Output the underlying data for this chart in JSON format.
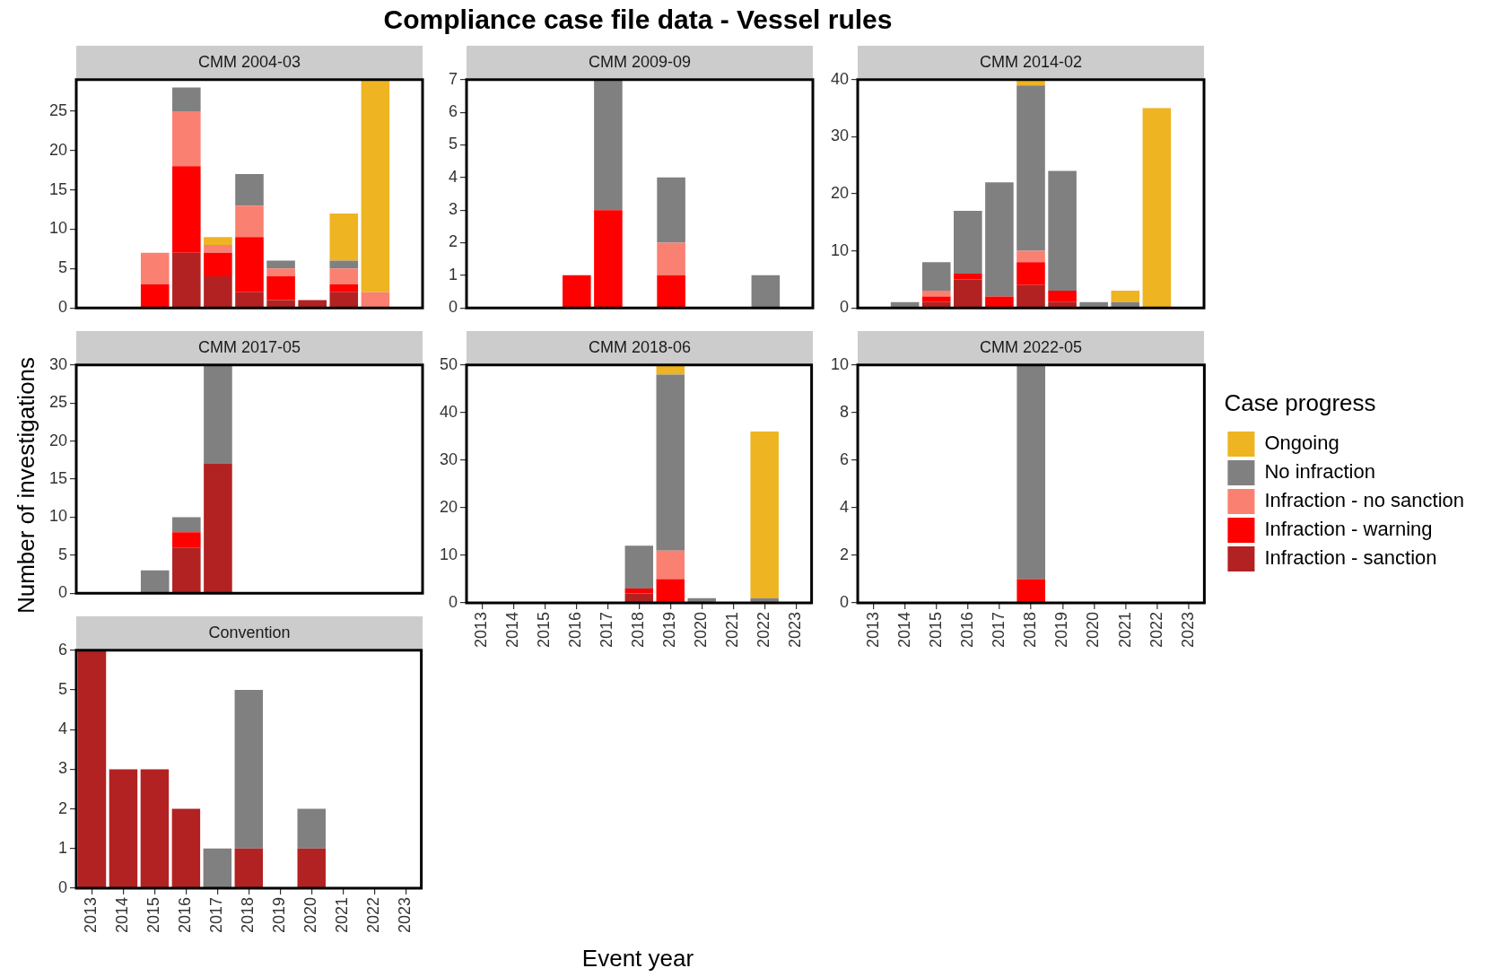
{
  "chart_data": [
    {
      "type": "other",
      "title": "Compliance case file data - Vessel rules",
      "xlabel": "Event year",
      "ylabel": "Number of investigations"
    },
    {
      "type": "bar",
      "title": "CMM 2004-03",
      "stacked": true,
      "categories": [
        "2013",
        "2014",
        "2015",
        "2016",
        "2017",
        "2018",
        "2019",
        "2020",
        "2021",
        "2022",
        "2023"
      ],
      "series": [
        {
          "color": "#b22222",
          "values": [
            0,
            0,
            0,
            7,
            4,
            2,
            1,
            1,
            2,
            0,
            0
          ]
        },
        {
          "color": "#ff0000",
          "values": [
            0,
            0,
            3,
            11,
            3,
            7,
            3,
            0,
            1,
            0,
            0
          ]
        },
        {
          "color": "#fa8072",
          "values": [
            0,
            0,
            4,
            7,
            1,
            4,
            1,
            0,
            2,
            2,
            0
          ]
        },
        {
          "color": "#808080",
          "values": [
            0,
            0,
            0,
            3,
            0,
            4,
            1,
            0,
            1,
            0,
            0
          ]
        },
        {
          "color": "#eeb422",
          "values": [
            0,
            0,
            0,
            0,
            1,
            0,
            0,
            0,
            6,
            27,
            0
          ]
        }
      ],
      "ylim": [
        0,
        29
      ],
      "yticks": [
        0,
        5,
        10,
        15,
        20,
        25
      ],
      "tick_labels": "y"
    },
    {
      "type": "bar",
      "title": "CMM 2009-09",
      "stacked": true,
      "categories": [
        "2013",
        "2014",
        "2015",
        "2016",
        "2017",
        "2018",
        "2019",
        "2020",
        "2021",
        "2022",
        "2023"
      ],
      "series": [
        {
          "color": "#b22222",
          "values": [
            0,
            0,
            0,
            0,
            0,
            0,
            0,
            0,
            0,
            0,
            0
          ]
        },
        {
          "color": "#ff0000",
          "values": [
            0,
            0,
            0,
            1,
            3,
            0,
            1,
            0,
            0,
            0,
            0
          ]
        },
        {
          "color": "#fa8072",
          "values": [
            0,
            0,
            0,
            0,
            0,
            0,
            1,
            0,
            0,
            0,
            0
          ]
        },
        {
          "color": "#808080",
          "values": [
            0,
            0,
            0,
            0,
            4,
            0,
            2,
            0,
            0,
            1,
            0
          ]
        },
        {
          "color": "#eeb422",
          "values": [
            0,
            0,
            0,
            0,
            0,
            0,
            0,
            0,
            0,
            0,
            0
          ]
        }
      ],
      "ylim": [
        0,
        7
      ],
      "yticks": [
        0,
        1,
        2,
        3,
        4,
        5,
        6,
        7
      ],
      "tick_labels": "y"
    },
    {
      "type": "bar",
      "title": "CMM 2014-02",
      "stacked": true,
      "categories": [
        "2013",
        "2014",
        "2015",
        "2016",
        "2017",
        "2018",
        "2019",
        "2020",
        "2021",
        "2022",
        "2023"
      ],
      "series": [
        {
          "color": "#b22222",
          "values": [
            0,
            0,
            1,
            5,
            0,
            4,
            1,
            0,
            0,
            0,
            0
          ]
        },
        {
          "color": "#ff0000",
          "values": [
            0,
            0,
            1,
            1,
            2,
            4,
            2,
            0,
            0,
            0,
            0
          ]
        },
        {
          "color": "#fa8072",
          "values": [
            0,
            0,
            1,
            0,
            0,
            2,
            0,
            0,
            0,
            0,
            0
          ]
        },
        {
          "color": "#808080",
          "values": [
            0,
            1,
            5,
            11,
            20,
            29,
            21,
            1,
            1,
            0,
            0
          ]
        },
        {
          "color": "#eeb422",
          "values": [
            0,
            0,
            0,
            0,
            0,
            1,
            0,
            0,
            2,
            35,
            0
          ]
        }
      ],
      "ylim": [
        0,
        40
      ],
      "yticks": [
        0,
        10,
        20,
        30,
        40
      ],
      "tick_labels": "y"
    },
    {
      "type": "bar",
      "title": "CMM 2017-05",
      "stacked": true,
      "categories": [
        "2013",
        "2014",
        "2015",
        "2016",
        "2017",
        "2018",
        "2019",
        "2020",
        "2021",
        "2022",
        "2023"
      ],
      "series": [
        {
          "color": "#b22222",
          "values": [
            0,
            0,
            0,
            6,
            17,
            0,
            0,
            0,
            0,
            0,
            0
          ]
        },
        {
          "color": "#ff0000",
          "values": [
            0,
            0,
            0,
            2,
            0,
            0,
            0,
            0,
            0,
            0,
            0
          ]
        },
        {
          "color": "#fa8072",
          "values": [
            0,
            0,
            0,
            0,
            0,
            0,
            0,
            0,
            0,
            0,
            0
          ]
        },
        {
          "color": "#808080",
          "values": [
            0,
            0,
            3,
            2,
            13,
            0,
            0,
            0,
            0,
            0,
            0
          ]
        },
        {
          "color": "#eeb422",
          "values": [
            0,
            0,
            0,
            0,
            0,
            0,
            0,
            0,
            0,
            0,
            0
          ]
        }
      ],
      "ylim": [
        0,
        30
      ],
      "yticks": [
        0,
        5,
        10,
        15,
        20,
        25,
        30
      ],
      "tick_labels": "y"
    },
    {
      "type": "bar",
      "title": "CMM 2018-06",
      "stacked": true,
      "categories": [
        "2013",
        "2014",
        "2015",
        "2016",
        "2017",
        "2018",
        "2019",
        "2020",
        "2021",
        "2022",
        "2023"
      ],
      "series": [
        {
          "color": "#b22222",
          "values": [
            0,
            0,
            0,
            0,
            0,
            2,
            0,
            0,
            0,
            0,
            0
          ]
        },
        {
          "color": "#ff0000",
          "values": [
            0,
            0,
            0,
            0,
            0,
            1,
            5,
            0,
            0,
            0,
            0
          ]
        },
        {
          "color": "#fa8072",
          "values": [
            0,
            0,
            0,
            0,
            0,
            0,
            6,
            0,
            0,
            0,
            0
          ]
        },
        {
          "color": "#808080",
          "values": [
            0,
            0,
            0,
            0,
            0,
            9,
            37,
            1,
            0,
            1,
            0
          ]
        },
        {
          "color": "#eeb422",
          "values": [
            0,
            0,
            0,
            0,
            0,
            0,
            2,
            0,
            0,
            35,
            0
          ]
        }
      ],
      "ylim": [
        0,
        50
      ],
      "yticks": [
        0,
        10,
        20,
        30,
        40,
        50
      ]
    },
    {
      "type": "bar",
      "title": "CMM 2022-05",
      "stacked": true,
      "categories": [
        "2013",
        "2014",
        "2015",
        "2016",
        "2017",
        "2018",
        "2019",
        "2020",
        "2021",
        "2022",
        "2023"
      ],
      "series": [
        {
          "name": "Infraction - sanction",
          "color": "#b22222",
          "values": [
            0,
            0,
            0,
            0,
            0,
            0,
            0,
            0,
            0,
            0,
            0
          ]
        },
        {
          "name": "Infraction - warning",
          "color": "#ff0000",
          "values": [
            0,
            0,
            0,
            0,
            0,
            1,
            0,
            0,
            0,
            0,
            0
          ]
        },
        {
          "name": "Infraction - no sanction",
          "color": "#fa8072",
          "values": [
            0,
            0,
            0,
            0,
            0,
            0,
            0,
            0,
            0,
            0,
            0
          ]
        },
        {
          "name": "No infraction",
          "color": "#808080",
          "values": [
            0,
            0,
            0,
            0,
            0,
            9,
            0,
            0,
            0,
            0,
            0
          ]
        },
        {
          "name": "Ongoing",
          "color": "#eeb422",
          "values": [
            0,
            0,
            0,
            0,
            0,
            0,
            0,
            0,
            0,
            0,
            0
          ]
        }
      ],
      "ylim": [
        0,
        10
      ],
      "yticks": [
        0,
        2,
        4,
        6,
        8,
        10
      ],
      "legend": "right",
      "legend_title": "Case progress"
    },
    {
      "type": "bar",
      "title": "Convention",
      "stacked": true,
      "categories": [
        "2013",
        "2014",
        "2015",
        "2016",
        "2017",
        "2018",
        "2019",
        "2020",
        "2021",
        "2022",
        "2023"
      ],
      "series": [
        {
          "color": "#b22222",
          "values": [
            6,
            3,
            3,
            2,
            0,
            1,
            0,
            1,
            0,
            0,
            0
          ]
        },
        {
          "color": "#ff0000",
          "values": [
            0,
            0,
            0,
            0,
            0,
            0,
            0,
            0,
            0,
            0,
            0
          ]
        },
        {
          "color": "#fa8072",
          "values": [
            0,
            0,
            0,
            0,
            0,
            0,
            0,
            0,
            0,
            0,
            0
          ]
        },
        {
          "color": "#808080",
          "values": [
            0,
            0,
            0,
            0,
            1,
            4,
            0,
            1,
            0,
            0,
            0
          ]
        },
        {
          "color": "#eeb422",
          "values": [
            0,
            0,
            0,
            0,
            0,
            0,
            0,
            0,
            0,
            0,
            0
          ]
        }
      ],
      "ylim": [
        0,
        6
      ],
      "yticks": [
        0,
        1,
        2,
        3,
        4,
        5,
        6
      ]
    }
  ]
}
